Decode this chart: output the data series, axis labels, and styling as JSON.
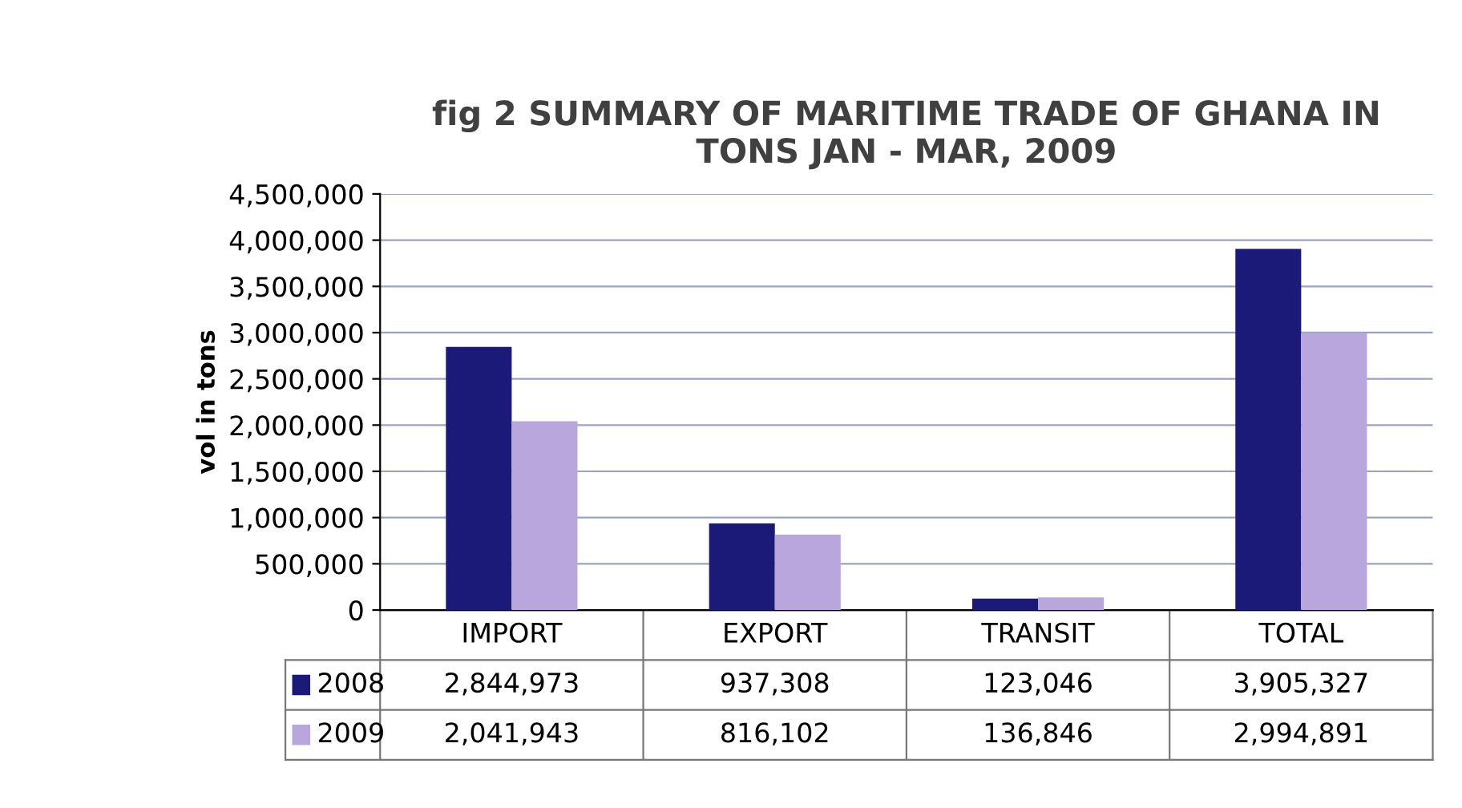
{
  "chart_data": {
    "type": "bar",
    "title": "fig 2 SUMMARY OF MARITIME TRADE OF GHANA IN\nTONS JAN - MAR, 2009",
    "ylabel": "vol in tons",
    "categories": [
      "IMPORT",
      "EXPORT",
      "TRANSIT",
      "TOTAL"
    ],
    "series": [
      {
        "name": "2008",
        "color": "#1c1a78",
        "values": [
          2844973,
          937308,
          123046,
          3905327
        ],
        "value_labels": [
          "2,844,973",
          "937,308",
          "123,046",
          "3,905,327"
        ]
      },
      {
        "name": "2009",
        "color": "#b9a6dc",
        "values": [
          2041943,
          816102,
          136846,
          2994891
        ],
        "value_labels": [
          "2,041,943",
          "816,102",
          "136,846",
          "2,994,891"
        ]
      }
    ],
    "ylim": [
      0,
      4500000
    ],
    "yticks": [
      {
        "value": 0,
        "label": "0"
      },
      {
        "value": 500000,
        "label": "500,000"
      },
      {
        "value": 1000000,
        "label": "1,000,000"
      },
      {
        "value": 1500000,
        "label": "1,500,000"
      },
      {
        "value": 2000000,
        "label": "2,000,000"
      },
      {
        "value": 2500000,
        "label": "2,500,000"
      },
      {
        "value": 3000000,
        "label": "3,000,000"
      },
      {
        "value": 3500000,
        "label": "3,500,000"
      },
      {
        "value": 4000000,
        "label": "4,000,000"
      },
      {
        "value": 4500000,
        "label": "4,500,000"
      }
    ],
    "grid": "y",
    "legend": "bottom"
  }
}
